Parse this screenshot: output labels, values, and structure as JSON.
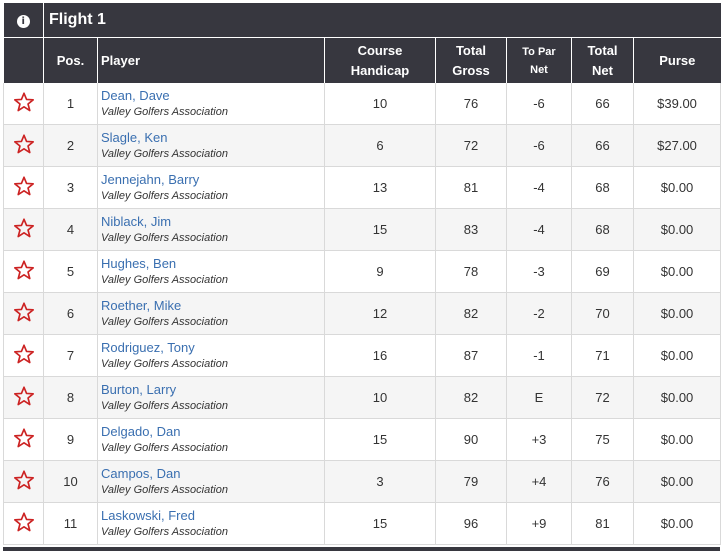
{
  "flight": {
    "title": "Flight 1",
    "info_icon": "info-icon"
  },
  "columns": {
    "pos": "Pos.",
    "player": "Player",
    "handicap_1": "Course",
    "handicap_2": "Handicap",
    "gross_1": "Total",
    "gross_2": "Gross",
    "topar_1": "To Par",
    "topar_2": "Net",
    "net_1": "Total",
    "net_2": "Net",
    "purse": "Purse"
  },
  "colors": {
    "header_bg": "#37373f",
    "link": "#3a6fb0",
    "under_par": "#cc2222",
    "even_par": "#2a9a2a",
    "over_par": "#8a2a9a",
    "star": "#cc2222"
  },
  "rows": [
    {
      "pos": "1",
      "name": "Dean, Dave",
      "assoc": "Valley Golfers Association",
      "handicap": "10",
      "gross": "76",
      "topar": "-6",
      "net": "66",
      "purse": "$39.00",
      "status": "neg"
    },
    {
      "pos": "2",
      "name": "Slagle, Ken",
      "assoc": "Valley Golfers Association",
      "handicap": "6",
      "gross": "72",
      "topar": "-6",
      "net": "66",
      "purse": "$27.00",
      "status": "neg"
    },
    {
      "pos": "3",
      "name": "Jennejahn, Barry",
      "assoc": "Valley Golfers Association",
      "handicap": "13",
      "gross": "81",
      "topar": "-4",
      "net": "68",
      "purse": "$0.00",
      "status": "neg"
    },
    {
      "pos": "4",
      "name": "Niblack, Jim",
      "assoc": "Valley Golfers Association",
      "handicap": "15",
      "gross": "83",
      "topar": "-4",
      "net": "68",
      "purse": "$0.00",
      "status": "neg"
    },
    {
      "pos": "5",
      "name": "Hughes, Ben",
      "assoc": "Valley Golfers Association",
      "handicap": "9",
      "gross": "78",
      "topar": "-3",
      "net": "69",
      "purse": "$0.00",
      "status": "neg"
    },
    {
      "pos": "6",
      "name": "Roether, Mike",
      "assoc": "Valley Golfers Association",
      "handicap": "12",
      "gross": "82",
      "topar": "-2",
      "net": "70",
      "purse": "$0.00",
      "status": "neg"
    },
    {
      "pos": "7",
      "name": "Rodriguez, Tony",
      "assoc": "Valley Golfers Association",
      "handicap": "16",
      "gross": "87",
      "topar": "-1",
      "net": "71",
      "purse": "$0.00",
      "status": "neg"
    },
    {
      "pos": "8",
      "name": "Burton, Larry",
      "assoc": "Valley Golfers Association",
      "handicap": "10",
      "gross": "82",
      "topar": "E",
      "net": "72",
      "purse": "$0.00",
      "status": "even"
    },
    {
      "pos": "9",
      "name": "Delgado, Dan",
      "assoc": "Valley Golfers Association",
      "handicap": "15",
      "gross": "90",
      "topar": "+3",
      "net": "75",
      "purse": "$0.00",
      "status": "pos"
    },
    {
      "pos": "10",
      "name": "Campos, Dan",
      "assoc": "Valley Golfers Association",
      "handicap": "3",
      "gross": "79",
      "topar": "+4",
      "net": "76",
      "purse": "$0.00",
      "status": "pos"
    },
    {
      "pos": "11",
      "name": "Laskowski, Fred",
      "assoc": "Valley Golfers Association",
      "handicap": "15",
      "gross": "96",
      "topar": "+9",
      "net": "81",
      "purse": "$0.00",
      "status": "pos"
    }
  ]
}
